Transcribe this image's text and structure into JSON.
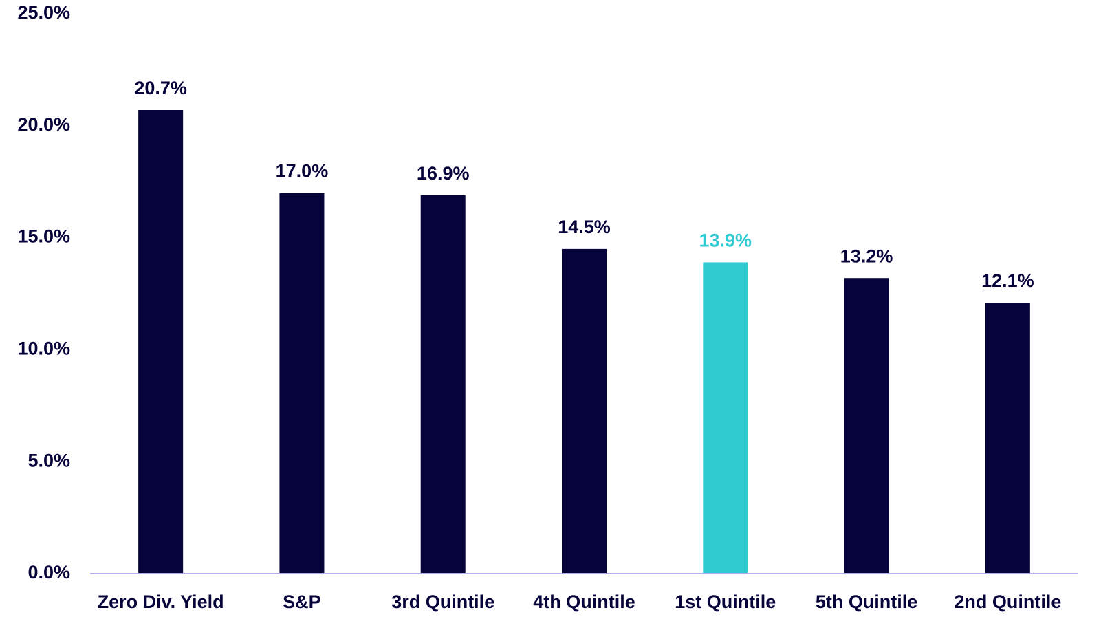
{
  "chart_data": {
    "type": "bar",
    "categories": [
      "Zero Div. Yield",
      "S&P",
      "3rd Quintile",
      "4th Quintile",
      "1st Quintile",
      "5th Quintile",
      "2nd Quintile"
    ],
    "values": [
      20.7,
      17.0,
      16.9,
      14.5,
      13.9,
      13.2,
      12.1
    ],
    "value_labels": [
      "20.7%",
      "17.0%",
      "16.9%",
      "14.5%",
      "13.9%",
      "13.2%",
      "12.1%"
    ],
    "colors": [
      "#06033a",
      "#06033a",
      "#06033a",
      "#06033a",
      "#2ecbd0",
      "#06033a",
      "#06033a"
    ],
    "ylim": [
      0,
      25
    ],
    "yticks": [
      {
        "value": 0,
        "label": "0.0%"
      },
      {
        "value": 5,
        "label": "5.0%"
      },
      {
        "value": 10,
        "label": "10.0%"
      },
      {
        "value": 15,
        "label": "15.0%"
      },
      {
        "value": 20,
        "label": "20.0%"
      },
      {
        "value": 25,
        "label": "25.0%"
      }
    ],
    "grid": false
  }
}
